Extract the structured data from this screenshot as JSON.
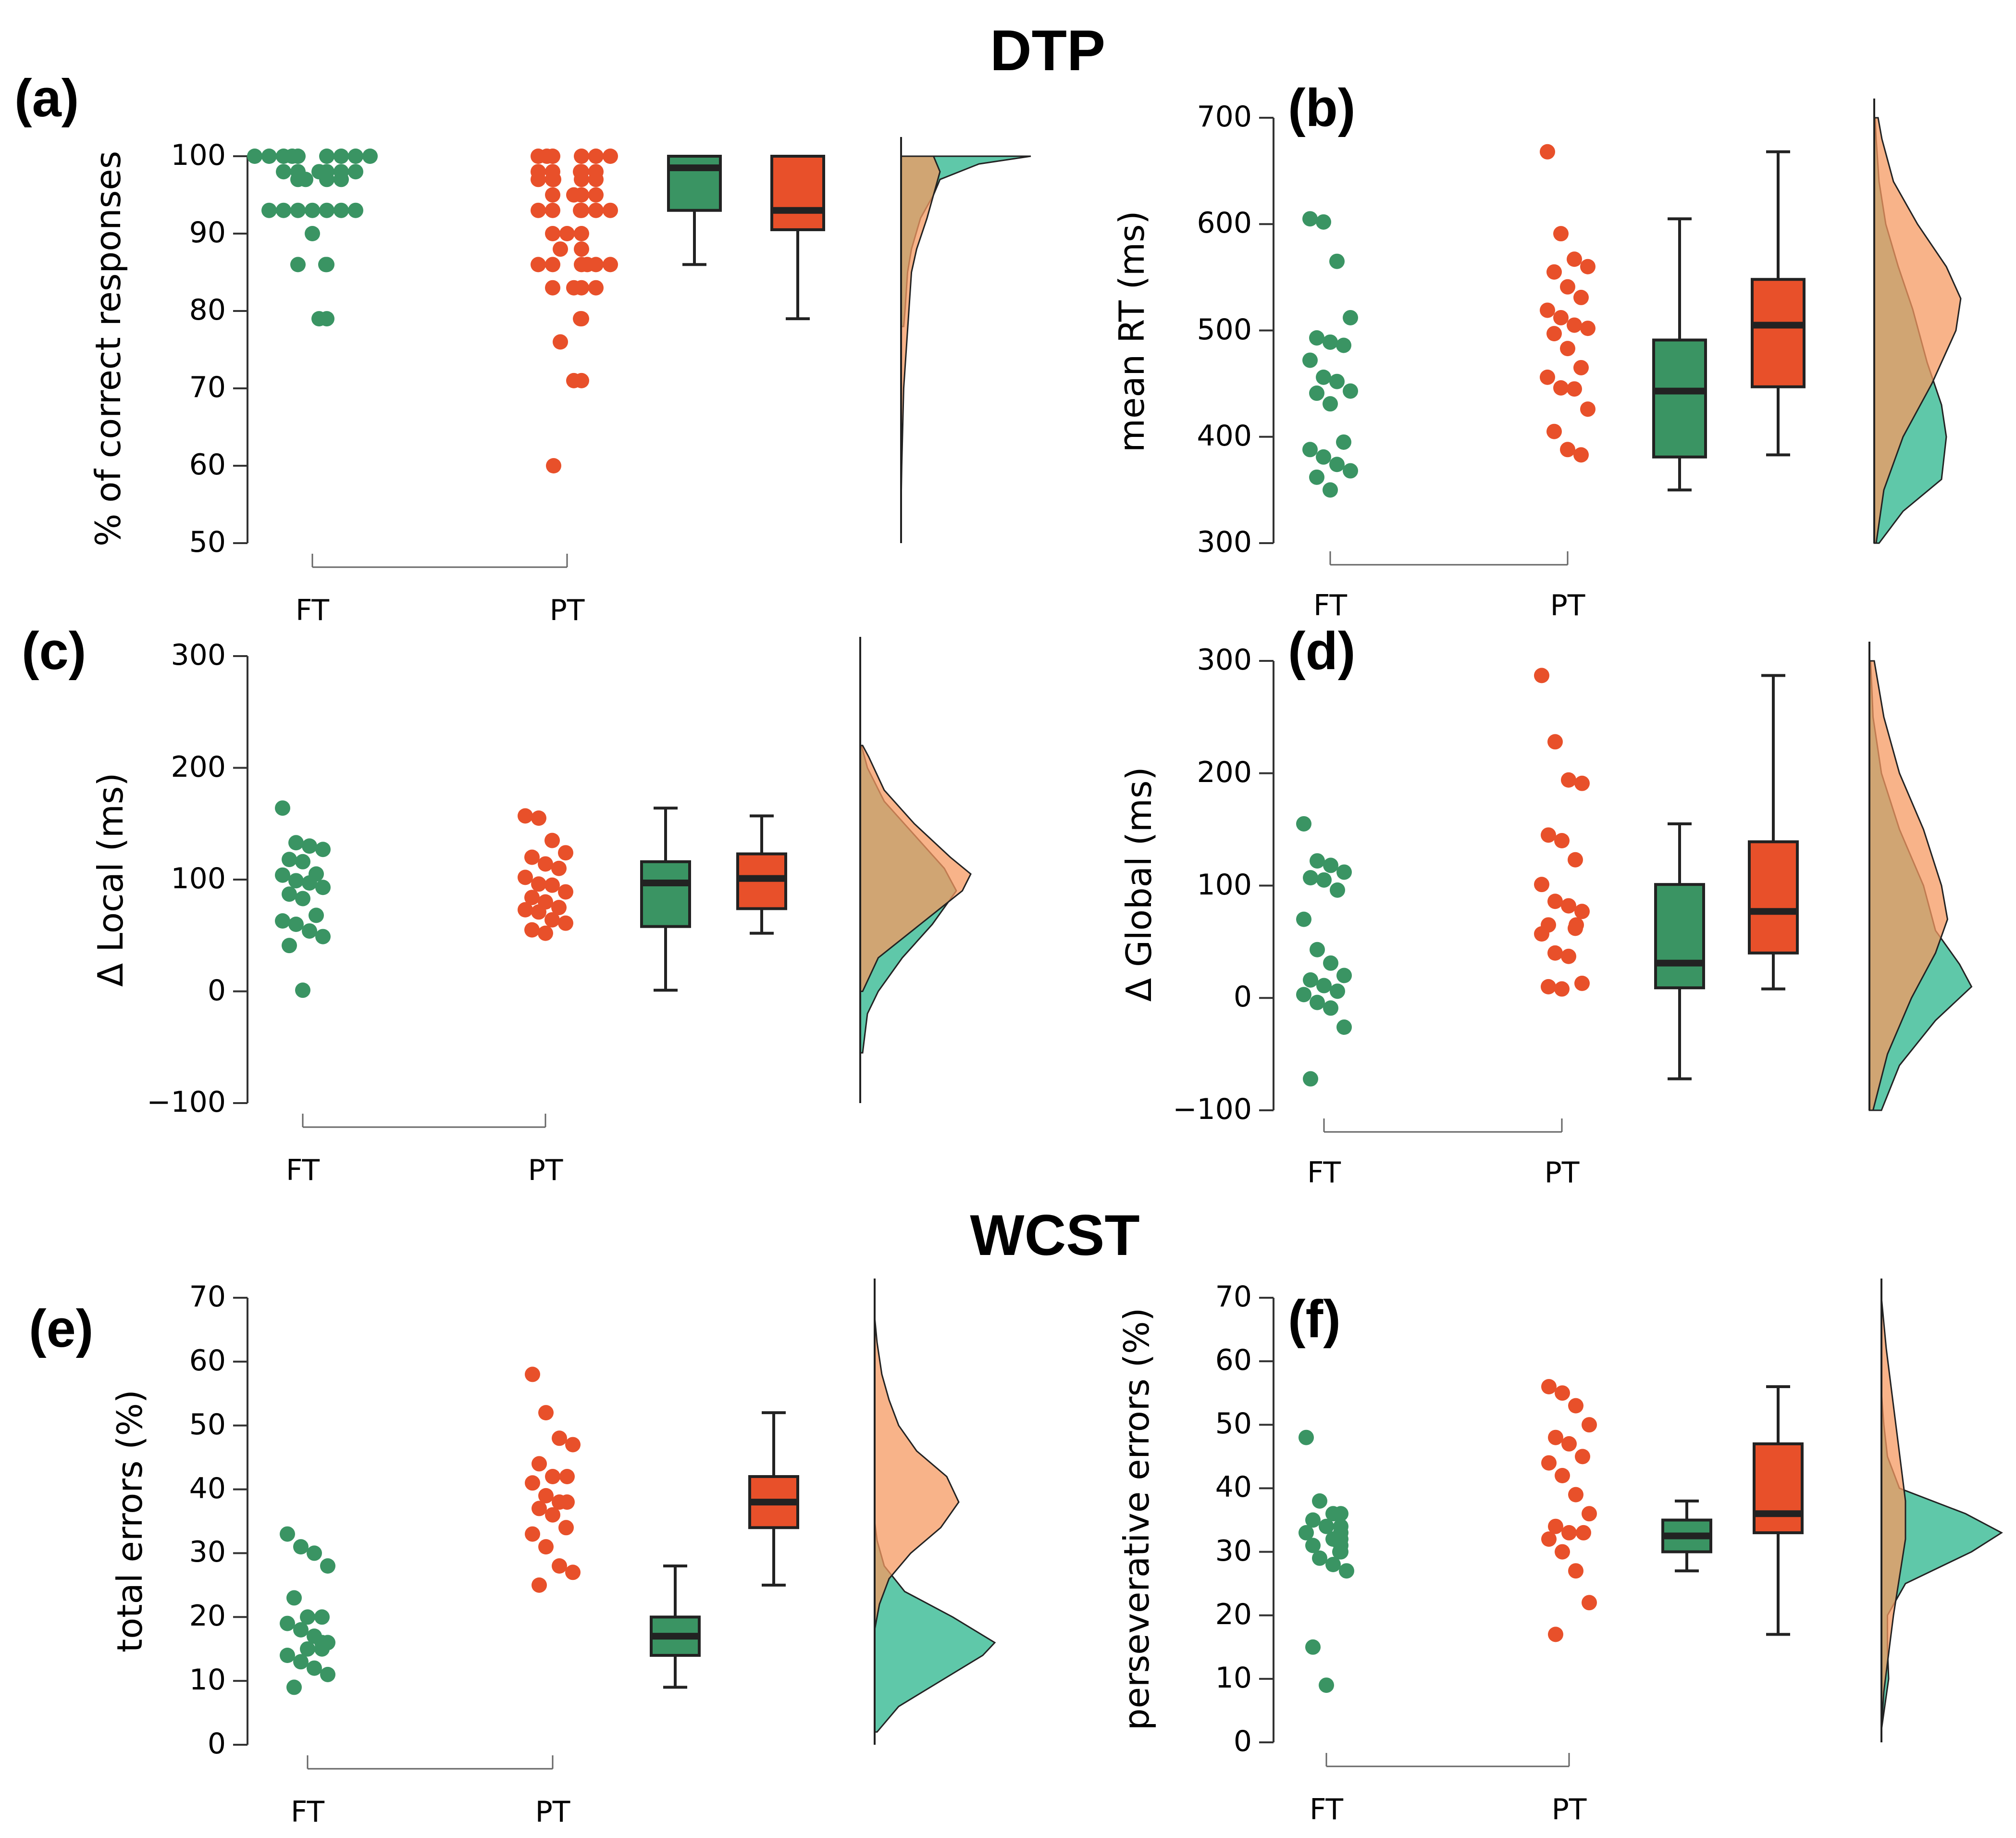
{
  "titles": {
    "dtp": "DTP",
    "wcst": "WCST"
  },
  "colors": {
    "ft_point": "#3a9463",
    "pt_point": "#e8502a",
    "ft_box": "#3a9463",
    "pt_box": "#e8502a",
    "ft_density": "#5fc8a9",
    "pt_density": "#f59a62",
    "overlap": "#a6803f",
    "axis": "#333333"
  },
  "chart_data": [
    {
      "id": "a",
      "label": "(a)",
      "type": "raincloud",
      "ylabel": "% of correct responses",
      "ylim": [
        50,
        100
      ],
      "yticks": [
        50,
        60,
        70,
        80,
        90,
        100
      ],
      "categories": [
        "FT",
        "PT"
      ],
      "series": [
        {
          "name": "FT",
          "points": [
            100,
            100,
            100,
            100,
            100,
            100,
            100,
            100,
            100,
            98,
            98,
            98,
            98,
            98,
            98,
            97,
            97,
            97,
            97,
            93,
            93,
            93,
            93,
            93,
            93,
            93,
            90,
            86,
            86,
            86,
            79,
            79
          ],
          "box": {
            "min": 86,
            "q1": 93,
            "median": 98.5,
            "q3": 100,
            "max": 100
          },
          "density": [
            [
              100,
              1.0
            ],
            [
              99,
              0.6
            ],
            [
              97,
              0.3
            ],
            [
              95,
              0.25
            ],
            [
              92,
              0.15
            ],
            [
              88,
              0.08
            ],
            [
              85,
              0.05
            ],
            [
              80,
              0.03
            ],
            [
              78,
              0.02
            ]
          ]
        },
        {
          "name": "PT",
          "points": [
            100,
            100,
            100,
            100,
            100,
            100,
            98,
            98,
            98,
            98,
            98,
            97,
            97,
            97,
            97,
            97,
            95,
            95,
            95,
            95,
            93,
            93,
            93,
            93,
            93,
            93,
            90,
            90,
            90,
            88,
            88,
            86,
            86,
            86,
            86,
            86,
            86,
            83,
            83,
            83,
            83,
            79,
            79,
            76,
            71,
            71,
            60
          ],
          "box": {
            "min": 79,
            "q1": 90.5,
            "median": 93,
            "q3": 100,
            "max": 100
          },
          "density": [
            [
              100,
              0.25
            ],
            [
              98,
              0.3
            ],
            [
              95,
              0.25
            ],
            [
              92,
              0.2
            ],
            [
              88,
              0.12
            ],
            [
              85,
              0.08
            ],
            [
              80,
              0.06
            ],
            [
              75,
              0.04
            ],
            [
              70,
              0.02
            ],
            [
              60,
              0.005
            ],
            [
              55,
              0
            ]
          ]
        }
      ]
    },
    {
      "id": "b",
      "label": "(b)",
      "type": "raincloud",
      "ylabel": "mean RT (ms)",
      "ylim": [
        300,
        700
      ],
      "yticks": [
        300,
        400,
        500,
        600,
        700
      ],
      "categories": [
        "FT",
        "PT"
      ],
      "series": [
        {
          "name": "FT",
          "points": [
            605,
            602,
            565,
            512,
            493,
            489,
            486,
            472,
            456,
            452,
            443,
            441,
            431,
            395,
            388,
            381,
            374,
            368,
            362,
            350
          ],
          "box": {
            "min": 350,
            "q1": 381,
            "median": 443,
            "q3": 491,
            "max": 605
          },
          "density": [
            [
              300,
              0.05
            ],
            [
              330,
              0.3
            ],
            [
              360,
              0.7
            ],
            [
              400,
              0.75
            ],
            [
              430,
              0.7
            ],
            [
              470,
              0.55
            ],
            [
              520,
              0.4
            ],
            [
              560,
              0.25
            ],
            [
              600,
              0.12
            ],
            [
              640,
              0.05
            ],
            [
              680,
              0.02
            ],
            [
              700,
              0.01
            ]
          ]
        },
        {
          "name": "PT",
          "points": [
            668,
            591,
            567,
            560,
            555,
            541,
            531,
            519,
            512,
            505,
            502,
            497,
            483,
            465,
            456,
            446,
            445,
            426,
            405,
            388,
            383
          ],
          "box": {
            "min": 383,
            "q1": 447,
            "median": 505,
            "q3": 548,
            "max": 668
          },
          "density": [
            [
              300,
              0.02
            ],
            [
              350,
              0.1
            ],
            [
              400,
              0.3
            ],
            [
              450,
              0.6
            ],
            [
              500,
              0.85
            ],
            [
              530,
              0.9
            ],
            [
              560,
              0.75
            ],
            [
              600,
              0.45
            ],
            [
              640,
              0.2
            ],
            [
              680,
              0.08
            ],
            [
              700,
              0.04
            ]
          ]
        }
      ]
    },
    {
      "id": "c",
      "label": "(c)",
      "type": "raincloud",
      "ylabel": "Δ Local (ms)",
      "ylim": [
        -100,
        300
      ],
      "yticks": [
        -100,
        0,
        100,
        200,
        300
      ],
      "categories": [
        "FT",
        "PT"
      ],
      "series": [
        {
          "name": "FT",
          "points": [
            164,
            133,
            130,
            127,
            118,
            116,
            105,
            104,
            99,
            97,
            93,
            87,
            83,
            68,
            63,
            60,
            54,
            49,
            41,
            1
          ],
          "box": {
            "min": 1,
            "q1": 58,
            "median": 97,
            "q3": 116,
            "max": 164
          },
          "density": [
            [
              -55,
              0.02
            ],
            [
              -20,
              0.06
            ],
            [
              0,
              0.15
            ],
            [
              30,
              0.35
            ],
            [
              60,
              0.6
            ],
            [
              90,
              0.8
            ],
            [
              110,
              0.7
            ],
            [
              140,
              0.45
            ],
            [
              170,
              0.2
            ],
            [
              200,
              0.06
            ],
            [
              220,
              0.01
            ]
          ]
        },
        {
          "name": "PT",
          "points": [
            157,
            155,
            135,
            124,
            120,
            114,
            110,
            102,
            96,
            95,
            89,
            84,
            80,
            75,
            73,
            71,
            64,
            61,
            55,
            52
          ],
          "box": {
            "min": 52,
            "q1": 74,
            "median": 101,
            "q3": 123,
            "max": 157
          },
          "density": [
            [
              0,
              0.02
            ],
            [
              30,
              0.15
            ],
            [
              60,
              0.5
            ],
            [
              90,
              0.85
            ],
            [
              105,
              0.92
            ],
            [
              120,
              0.75
            ],
            [
              150,
              0.45
            ],
            [
              180,
              0.2
            ],
            [
              210,
              0.07
            ],
            [
              220,
              0.02
            ]
          ]
        }
      ]
    },
    {
      "id": "d",
      "label": "(d)",
      "type": "raincloud",
      "ylabel": "Δ Global (ms)",
      "ylim": [
        -100,
        300
      ],
      "yticks": [
        -100,
        0,
        100,
        200,
        300
      ],
      "categories": [
        "FT",
        "PT"
      ],
      "series": [
        {
          "name": "FT",
          "points": [
            155,
            122,
            118,
            112,
            107,
            105,
            96,
            70,
            43,
            31,
            20,
            16,
            11,
            6,
            3,
            -4,
            -9,
            -26,
            -72
          ],
          "box": {
            "min": -72,
            "q1": 9,
            "median": 31,
            "q3": 101,
            "max": 155
          },
          "density": [
            [
              -100,
              0.1
            ],
            [
              -60,
              0.25
            ],
            [
              -20,
              0.55
            ],
            [
              10,
              0.85
            ],
            [
              30,
              0.75
            ],
            [
              60,
              0.55
            ],
            [
              100,
              0.45
            ],
            [
              150,
              0.25
            ],
            [
              200,
              0.1
            ],
            [
              250,
              0.03
            ],
            [
              300,
              0.01
            ]
          ]
        },
        {
          "name": "PT",
          "points": [
            287,
            228,
            194,
            191,
            145,
            140,
            123,
            101,
            86,
            82,
            77,
            65,
            65,
            62,
            57,
            40,
            37,
            13,
            10,
            8
          ],
          "box": {
            "min": 8,
            "q1": 40,
            "median": 77,
            "q3": 139,
            "max": 287
          },
          "density": [
            [
              -100,
              0.03
            ],
            [
              -50,
              0.15
            ],
            [
              0,
              0.35
            ],
            [
              40,
              0.55
            ],
            [
              70,
              0.65
            ],
            [
              100,
              0.6
            ],
            [
              150,
              0.45
            ],
            [
              200,
              0.25
            ],
            [
              250,
              0.12
            ],
            [
              300,
              0.04
            ]
          ]
        }
      ]
    },
    {
      "id": "e",
      "label": "(e)",
      "type": "raincloud",
      "ylabel": "total errors (%)",
      "ylim": [
        0,
        70
      ],
      "yticks": [
        0,
        10,
        20,
        30,
        40,
        50,
        60,
        70
      ],
      "categories": [
        "FT",
        "PT"
      ],
      "series": [
        {
          "name": "FT",
          "points": [
            33,
            31,
            30,
            28,
            23,
            20,
            20,
            19,
            18,
            17,
            16,
            16,
            15,
            15,
            14,
            13,
            12,
            11,
            9
          ],
          "box": {
            "min": 9,
            "q1": 14,
            "median": 17,
            "q3": 20,
            "max": 28
          },
          "density": [
            [
              2,
              0.02
            ],
            [
              6,
              0.2
            ],
            [
              10,
              0.55
            ],
            [
              14,
              0.9
            ],
            [
              16,
              1.0
            ],
            [
              20,
              0.65
            ],
            [
              24,
              0.25
            ],
            [
              28,
              0.08
            ],
            [
              32,
              0.02
            ],
            [
              35,
              0
            ]
          ]
        },
        {
          "name": "PT",
          "points": [
            58,
            52,
            48,
            47,
            44,
            42,
            42,
            41,
            39,
            38,
            38,
            37,
            36,
            34,
            33,
            31,
            28,
            27,
            25
          ],
          "box": {
            "min": 25,
            "q1": 34,
            "median": 38,
            "q3": 42,
            "max": 52
          },
          "density": [
            [
              18,
              0
            ],
            [
              22,
              0.04
            ],
            [
              26,
              0.12
            ],
            [
              30,
              0.3
            ],
            [
              34,
              0.55
            ],
            [
              38,
              0.7
            ],
            [
              42,
              0.6
            ],
            [
              46,
              0.35
            ],
            [
              50,
              0.2
            ],
            [
              54,
              0.12
            ],
            [
              58,
              0.06
            ],
            [
              63,
              0.02
            ],
            [
              67,
              0
            ]
          ]
        }
      ]
    },
    {
      "id": "f",
      "label": "(f)",
      "type": "raincloud",
      "ylabel": "perseverative errors (%)",
      "ylim": [
        0,
        70
      ],
      "yticks": [
        0,
        10,
        20,
        30,
        40,
        50,
        60,
        70
      ],
      "categories": [
        "FT",
        "PT"
      ],
      "series": [
        {
          "name": "FT",
          "points": [
            48,
            38,
            36,
            36,
            35,
            34,
            34,
            33,
            33,
            32,
            32,
            31,
            31,
            30,
            30,
            29,
            28,
            27,
            15,
            9
          ],
          "box": {
            "min": 27,
            "q1": 30,
            "median": 32.5,
            "q3": 35,
            "max": 38
          },
          "density": [
            [
              2,
              0
            ],
            [
              6,
              0.03
            ],
            [
              10,
              0.06
            ],
            [
              15,
              0.05
            ],
            [
              20,
              0.05
            ],
            [
              25,
              0.2
            ],
            [
              30,
              0.75
            ],
            [
              33,
              1.0
            ],
            [
              36,
              0.7
            ],
            [
              40,
              0.15
            ],
            [
              45,
              0.05
            ],
            [
              50,
              0.02
            ],
            [
              55,
              0
            ]
          ]
        },
        {
          "name": "PT",
          "points": [
            56,
            55,
            53,
            50,
            48,
            47,
            45,
            44,
            42,
            39,
            36,
            34,
            33,
            33,
            32,
            30,
            27,
            22,
            17
          ],
          "box": {
            "min": 17,
            "q1": 33,
            "median": 36,
            "q3": 47,
            "max": 56
          },
          "density": [
            [
              2,
              0
            ],
            [
              8,
              0.02
            ],
            [
              14,
              0.06
            ],
            [
              20,
              0.1
            ],
            [
              26,
              0.15
            ],
            [
              32,
              0.2
            ],
            [
              38,
              0.2
            ],
            [
              44,
              0.16
            ],
            [
              50,
              0.12
            ],
            [
              56,
              0.08
            ],
            [
              62,
              0.04
            ],
            [
              68,
              0.01
            ],
            [
              70,
              0
            ]
          ]
        }
      ]
    }
  ]
}
